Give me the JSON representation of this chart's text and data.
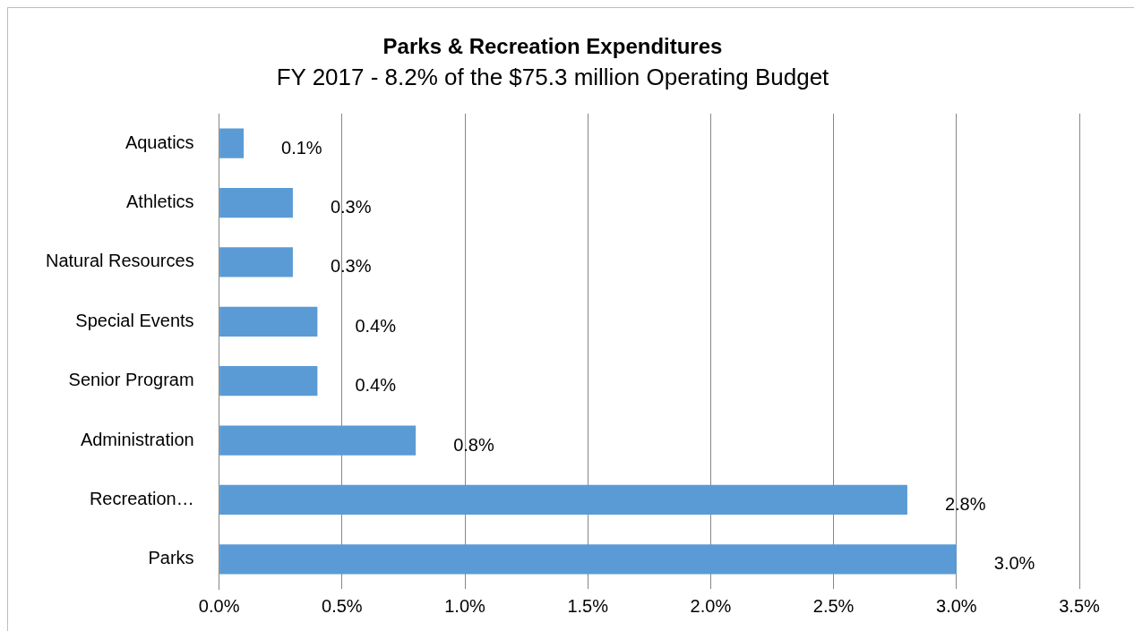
{
  "chart_data": {
    "type": "bar",
    "orientation": "horizontal",
    "title": "Parks & Recreation Expenditures",
    "subtitle": "FY 2017 - 8.2% of the $75.3 million Operating Budget",
    "categories": [
      "Aquatics",
      "Athletics",
      "Natural Resources",
      "Special Events",
      "Senior Program",
      "Administration",
      "Recreation…",
      "Parks"
    ],
    "values": [
      0.1,
      0.3,
      0.3,
      0.4,
      0.4,
      0.8,
      2.8,
      3.0
    ],
    "value_labels": [
      "0.1%",
      "0.3%",
      "0.3%",
      "0.4%",
      "0.4%",
      "0.8%",
      "2.8%",
      "3.0%"
    ],
    "color": "#5b9bd5",
    "xlim": [
      0,
      3.5
    ],
    "xticks": [
      {
        "value": 0,
        "label": "0.0%"
      },
      {
        "value": 0.5,
        "label": "0.5%"
      },
      {
        "value": 1,
        "label": "1.0%"
      },
      {
        "value": 1.5,
        "label": "1.5%"
      },
      {
        "value": 2,
        "label": "2.0%"
      },
      {
        "value": 2.5,
        "label": "2.5%"
      },
      {
        "value": 3,
        "label": "3.0%"
      },
      {
        "value": 3.5,
        "label": "3.5%"
      }
    ],
    "grid": "x",
    "legend": false
  }
}
